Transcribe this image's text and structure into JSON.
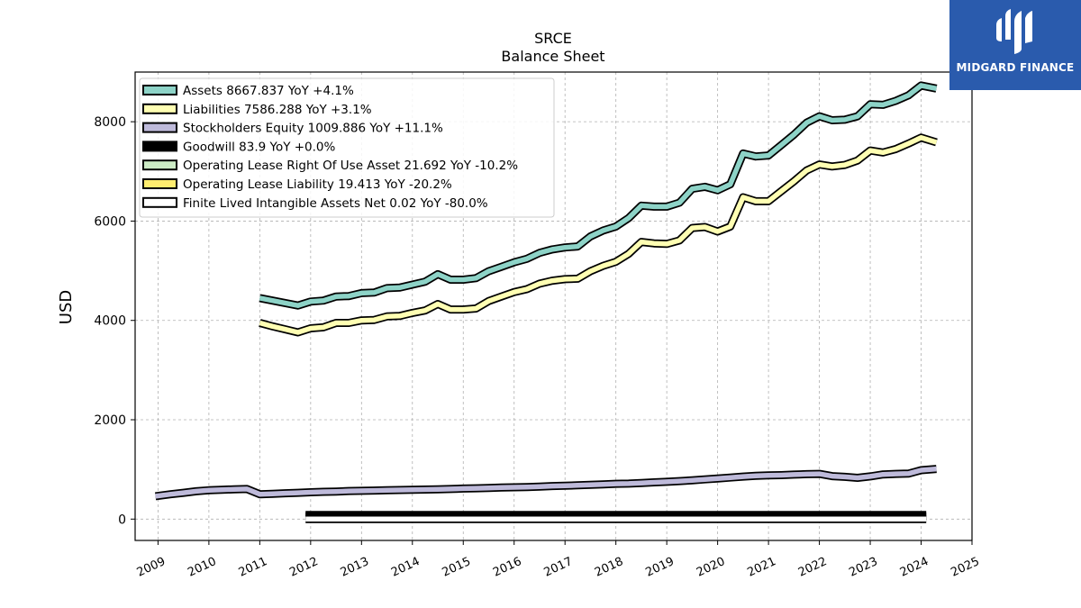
{
  "logo": {
    "name": "MIDGARD FINANCE"
  },
  "chart_data": {
    "type": "line",
    "title": "SRCE",
    "subtitle": "Balance  Sheet",
    "ylabel": "USD",
    "xlabel": "",
    "xlim": [
      2008.55,
      2025.0
    ],
    "ylim": [
      -430,
      9000
    ],
    "xticks": [
      2009,
      2010,
      2011,
      2012,
      2013,
      2014,
      2015,
      2016,
      2017,
      2018,
      2019,
      2020,
      2021,
      2022,
      2023,
      2024,
      2025
    ],
    "yticks": [
      0,
      2000,
      4000,
      6000,
      8000
    ],
    "grid": true,
    "legend_position": "upper-left",
    "series": [
      {
        "name": "Assets",
        "legend": "Assets  8667.837 YoY +4.1%",
        "color": "#8dd3c7",
        "points": [
          [
            2011.0,
            4450
          ],
          [
            2011.25,
            4400
          ],
          [
            2011.5,
            4350
          ],
          [
            2011.75,
            4300
          ],
          [
            2012.0,
            4380
          ],
          [
            2012.25,
            4400
          ],
          [
            2012.5,
            4480
          ],
          [
            2012.75,
            4490
          ],
          [
            2013.0,
            4550
          ],
          [
            2013.25,
            4560
          ],
          [
            2013.5,
            4650
          ],
          [
            2013.75,
            4660
          ],
          [
            2014.0,
            4720
          ],
          [
            2014.25,
            4780
          ],
          [
            2014.5,
            4930
          ],
          [
            2014.75,
            4820
          ],
          [
            2015.0,
            4820
          ],
          [
            2015.25,
            4850
          ],
          [
            2015.5,
            4990
          ],
          [
            2015.75,
            5080
          ],
          [
            2016.0,
            5170
          ],
          [
            2016.25,
            5240
          ],
          [
            2016.5,
            5360
          ],
          [
            2016.75,
            5430
          ],
          [
            2017.0,
            5470
          ],
          [
            2017.25,
            5490
          ],
          [
            2017.5,
            5690
          ],
          [
            2017.75,
            5810
          ],
          [
            2018.0,
            5890
          ],
          [
            2018.25,
            6060
          ],
          [
            2018.5,
            6310
          ],
          [
            2018.75,
            6290
          ],
          [
            2019.0,
            6290
          ],
          [
            2019.25,
            6370
          ],
          [
            2019.5,
            6650
          ],
          [
            2019.75,
            6690
          ],
          [
            2020.0,
            6620
          ],
          [
            2020.25,
            6740
          ],
          [
            2020.5,
            7360
          ],
          [
            2020.75,
            7300
          ],
          [
            2021.0,
            7320
          ],
          [
            2021.25,
            7530
          ],
          [
            2021.5,
            7740
          ],
          [
            2021.75,
            7980
          ],
          [
            2022.0,
            8110
          ],
          [
            2022.25,
            8030
          ],
          [
            2022.5,
            8040
          ],
          [
            2022.75,
            8110
          ],
          [
            2023.0,
            8350
          ],
          [
            2023.25,
            8340
          ],
          [
            2023.5,
            8420
          ],
          [
            2023.75,
            8530
          ],
          [
            2024.0,
            8730
          ],
          [
            2024.3,
            8667.837
          ]
        ]
      },
      {
        "name": "Liabilities",
        "legend": "Liabilities  7586.288 YoY +3.1%",
        "color": "#ffffb3",
        "points": [
          [
            2011.0,
            3950
          ],
          [
            2011.25,
            3880
          ],
          [
            2011.5,
            3820
          ],
          [
            2011.75,
            3760
          ],
          [
            2012.0,
            3840
          ],
          [
            2012.25,
            3860
          ],
          [
            2012.5,
            3950
          ],
          [
            2012.75,
            3950
          ],
          [
            2013.0,
            4000
          ],
          [
            2013.25,
            4010
          ],
          [
            2013.5,
            4080
          ],
          [
            2013.75,
            4090
          ],
          [
            2014.0,
            4150
          ],
          [
            2014.25,
            4200
          ],
          [
            2014.5,
            4330
          ],
          [
            2014.75,
            4220
          ],
          [
            2015.0,
            4220
          ],
          [
            2015.25,
            4240
          ],
          [
            2015.5,
            4390
          ],
          [
            2015.75,
            4480
          ],
          [
            2016.0,
            4570
          ],
          [
            2016.25,
            4630
          ],
          [
            2016.5,
            4740
          ],
          [
            2016.75,
            4800
          ],
          [
            2017.0,
            4830
          ],
          [
            2017.25,
            4840
          ],
          [
            2017.5,
            4990
          ],
          [
            2017.75,
            5100
          ],
          [
            2018.0,
            5180
          ],
          [
            2018.25,
            5340
          ],
          [
            2018.5,
            5580
          ],
          [
            2018.75,
            5550
          ],
          [
            2019.0,
            5540
          ],
          [
            2019.25,
            5610
          ],
          [
            2019.5,
            5860
          ],
          [
            2019.75,
            5880
          ],
          [
            2020.0,
            5790
          ],
          [
            2020.25,
            5890
          ],
          [
            2020.5,
            6480
          ],
          [
            2020.75,
            6400
          ],
          [
            2021.0,
            6400
          ],
          [
            2021.25,
            6600
          ],
          [
            2021.5,
            6800
          ],
          [
            2021.75,
            7020
          ],
          [
            2022.0,
            7140
          ],
          [
            2022.25,
            7100
          ],
          [
            2022.5,
            7130
          ],
          [
            2022.75,
            7220
          ],
          [
            2023.0,
            7420
          ],
          [
            2023.25,
            7380
          ],
          [
            2023.5,
            7450
          ],
          [
            2023.75,
            7560
          ],
          [
            2024.0,
            7680
          ],
          [
            2024.3,
            7586.288
          ]
        ]
      },
      {
        "name": "Stockholders Equity",
        "legend": "Stockholders Equity  1009.886 YoY +11.1%",
        "color": "#bebada",
        "points": [
          [
            2008.95,
            460
          ],
          [
            2009.25,
            500
          ],
          [
            2009.5,
            530
          ],
          [
            2009.75,
            560
          ],
          [
            2010.0,
            580
          ],
          [
            2010.25,
            590
          ],
          [
            2010.5,
            600
          ],
          [
            2010.75,
            605
          ],
          [
            2011.0,
            500
          ],
          [
            2011.25,
            510
          ],
          [
            2011.5,
            520
          ],
          [
            2011.75,
            530
          ],
          [
            2012.0,
            540
          ],
          [
            2012.25,
            550
          ],
          [
            2012.5,
            555
          ],
          [
            2012.75,
            565
          ],
          [
            2013.0,
            570
          ],
          [
            2013.25,
            575
          ],
          [
            2013.5,
            580
          ],
          [
            2013.75,
            585
          ],
          [
            2014.0,
            590
          ],
          [
            2014.25,
            595
          ],
          [
            2014.5,
            600
          ],
          [
            2014.75,
            605
          ],
          [
            2015.0,
            615
          ],
          [
            2015.25,
            620
          ],
          [
            2015.5,
            625
          ],
          [
            2015.75,
            635
          ],
          [
            2016.0,
            640
          ],
          [
            2016.25,
            645
          ],
          [
            2016.5,
            655
          ],
          [
            2016.75,
            665
          ],
          [
            2017.0,
            670
          ],
          [
            2017.25,
            680
          ],
          [
            2017.5,
            690
          ],
          [
            2017.75,
            700
          ],
          [
            2018.0,
            710
          ],
          [
            2018.25,
            715
          ],
          [
            2018.5,
            725
          ],
          [
            2018.75,
            740
          ],
          [
            2019.0,
            750
          ],
          [
            2019.25,
            765
          ],
          [
            2019.5,
            780
          ],
          [
            2019.75,
            800
          ],
          [
            2020.0,
            815
          ],
          [
            2020.25,
            835
          ],
          [
            2020.5,
            855
          ],
          [
            2020.75,
            870
          ],
          [
            2021.0,
            880
          ],
          [
            2021.25,
            885
          ],
          [
            2021.5,
            895
          ],
          [
            2021.75,
            905
          ],
          [
            2022.0,
            910
          ],
          [
            2022.25,
            865
          ],
          [
            2022.5,
            850
          ],
          [
            2022.75,
            830
          ],
          [
            2023.0,
            860
          ],
          [
            2023.25,
            900
          ],
          [
            2023.5,
            910
          ],
          [
            2023.75,
            915
          ],
          [
            2024.0,
            985
          ],
          [
            2024.3,
            1009.886
          ]
        ]
      },
      {
        "name": "Goodwill",
        "legend": "Goodwill  83.9 YoY +0.0%",
        "color": "#000000",
        "points": [
          [
            2011.9,
            83.9
          ],
          [
            2024.1,
            83.9
          ]
        ]
      },
      {
        "name": "Operating Lease Right Of Use Asset",
        "legend": "Operating Lease Right Of Use Asset  21.692 YoY -10.2%",
        "color": "#ccebc5",
        "points": []
      },
      {
        "name": "Operating Lease Liability",
        "legend": "Operating Lease Liability  19.413 YoY -20.2%",
        "color": "#ffed6f",
        "points": []
      },
      {
        "name": "Finite Lived Intangible Assets Net",
        "legend": "Finite Lived Intangible Assets Net  0.02 YoY -80.0%",
        "color": "#ffffff",
        "points": [
          [
            2011.9,
            0.1
          ],
          [
            2024.1,
            0.02
          ]
        ]
      }
    ]
  }
}
